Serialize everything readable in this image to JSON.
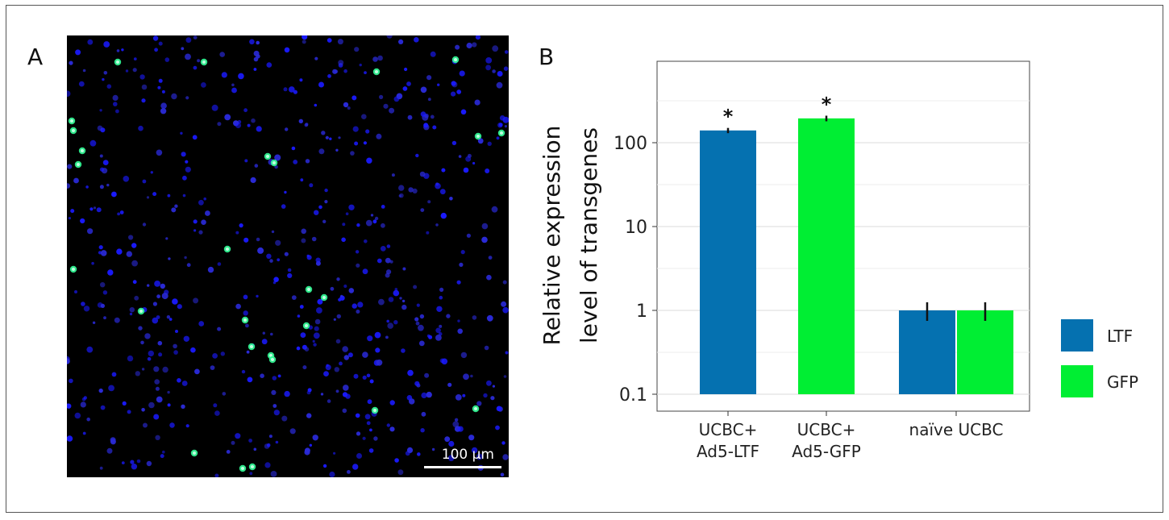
{
  "panels": {
    "a_label": "A",
    "b_label": "B"
  },
  "micrograph": {
    "scale_bar_label": "100 µm"
  },
  "chart_data": {
    "type": "bar",
    "scale": "log",
    "ylim": [
      0.1,
      500
    ],
    "yticks": [
      0.1,
      1,
      10,
      100
    ],
    "ytick_labels": [
      "0.1",
      "1",
      "10",
      "100"
    ],
    "ylabel_lines": [
      "Relative expression",
      "level of transgenes"
    ],
    "categories": [
      {
        "lines": [
          "UCBC+",
          "Ad5-LTF"
        ]
      },
      {
        "lines": [
          "UCBC+",
          "Ad5-GFP"
        ]
      },
      {
        "lines": [
          "naïve UCBC"
        ]
      }
    ],
    "series": [
      {
        "name": "LTF",
        "color": "#0571b0",
        "values": [
          140,
          null,
          1.0
        ],
        "errors": [
          10,
          null,
          0.25
        ]
      },
      {
        "name": "GFP",
        "color": "#00ee33",
        "values": [
          null,
          195,
          1.0
        ],
        "errors": [
          null,
          15,
          0.25
        ]
      }
    ],
    "annotations": [
      {
        "category": 0,
        "series": 0,
        "text": "*"
      },
      {
        "category": 1,
        "series": 1,
        "text": "*"
      }
    ],
    "grid": true,
    "legend_position": "right"
  }
}
